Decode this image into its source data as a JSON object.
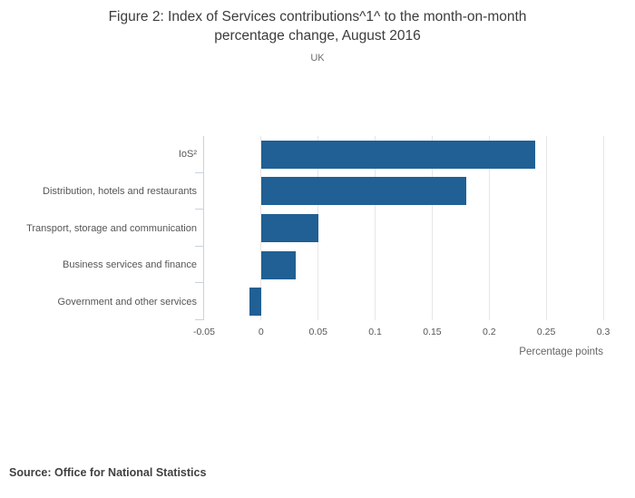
{
  "header": {
    "title_lines": [
      "Figure 2: Index of Services contributions^1^ to the month-on-month",
      "percentage change, August 2016"
    ],
    "subtitle": "UK"
  },
  "chart_data": {
    "type": "bar",
    "orientation": "horizontal",
    "title": "Figure 2: Index of Services contributions^1^ to the month-on-month percentage change, August 2016",
    "subtitle": "UK",
    "categories": [
      "IoS²",
      "Distribution, hotels and restaurants",
      "Transport, storage and communication",
      "Business services and finance",
      "Government and other services"
    ],
    "values": [
      0.24,
      0.18,
      0.05,
      0.03,
      -0.01
    ],
    "xlabel": "Percentage points",
    "ylabel": "",
    "xlim": [
      -0.05,
      0.3
    ],
    "x_ticks": [
      -0.05,
      0,
      0.05,
      0.1,
      0.15,
      0.2,
      0.25,
      0.3
    ],
    "x_tick_labels": [
      "-0.05",
      "0",
      "0.05",
      "0.1",
      "0.15",
      "0.2",
      "0.25",
      "0.3"
    ],
    "grid": true,
    "legend": false,
    "bar_color": "#206095",
    "gridline_color": "#e6e6e6",
    "axis_color": "#c9d2df"
  },
  "footer": {
    "source": "Source: Office for National Statistics"
  }
}
